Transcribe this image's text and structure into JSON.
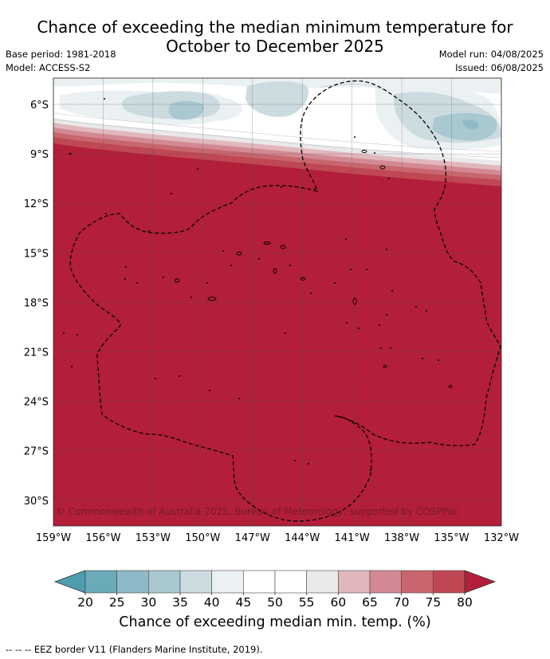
{
  "title_line1": "Chance of exceeding the median minimum temperature for",
  "title_line2": "October to December 2025",
  "base_period": "Base period: 1981-2018",
  "model": "Model: ACCESS-S2",
  "model_run": "Model run: 04/08/2025",
  "issued": "Issued: 06/08/2025",
  "copyright": "© Commonwealth of Australia 2025, Bureau of Meteorology, supported by COSPPac",
  "lat_labels": [
    "6°S",
    "9°S",
    "12°S",
    "15°S",
    "18°S",
    "21°S",
    "24°S",
    "27°S",
    "30°S"
  ],
  "lon_labels": [
    "159°W",
    "156°W",
    "153°W",
    "150°W",
    "147°W",
    "144°W",
    "141°W",
    "138°W",
    "135°W",
    "132°W"
  ],
  "colorbar": {
    "ticks": [
      "20",
      "25",
      "30",
      "35",
      "40",
      "45",
      "50",
      "55",
      "60",
      "65",
      "70",
      "75",
      "80"
    ],
    "colors": [
      "#6aaab9",
      "#8dbac6",
      "#a9c8cf",
      "#ccdbe0",
      "#ebf0f2",
      "#ffffff",
      "#ffffff",
      "#e9e9e9",
      "#e1b6bd",
      "#d38993",
      "#c7666f",
      "#bf4854"
    ],
    "under_color": "#4d9daf",
    "over_color": "#b31e3a",
    "label": "Chance of exceeding median min. temp. (%)"
  },
  "footer": "--  --  -- EEZ border V11 (Flanders Marine Institute, 2019)."
}
